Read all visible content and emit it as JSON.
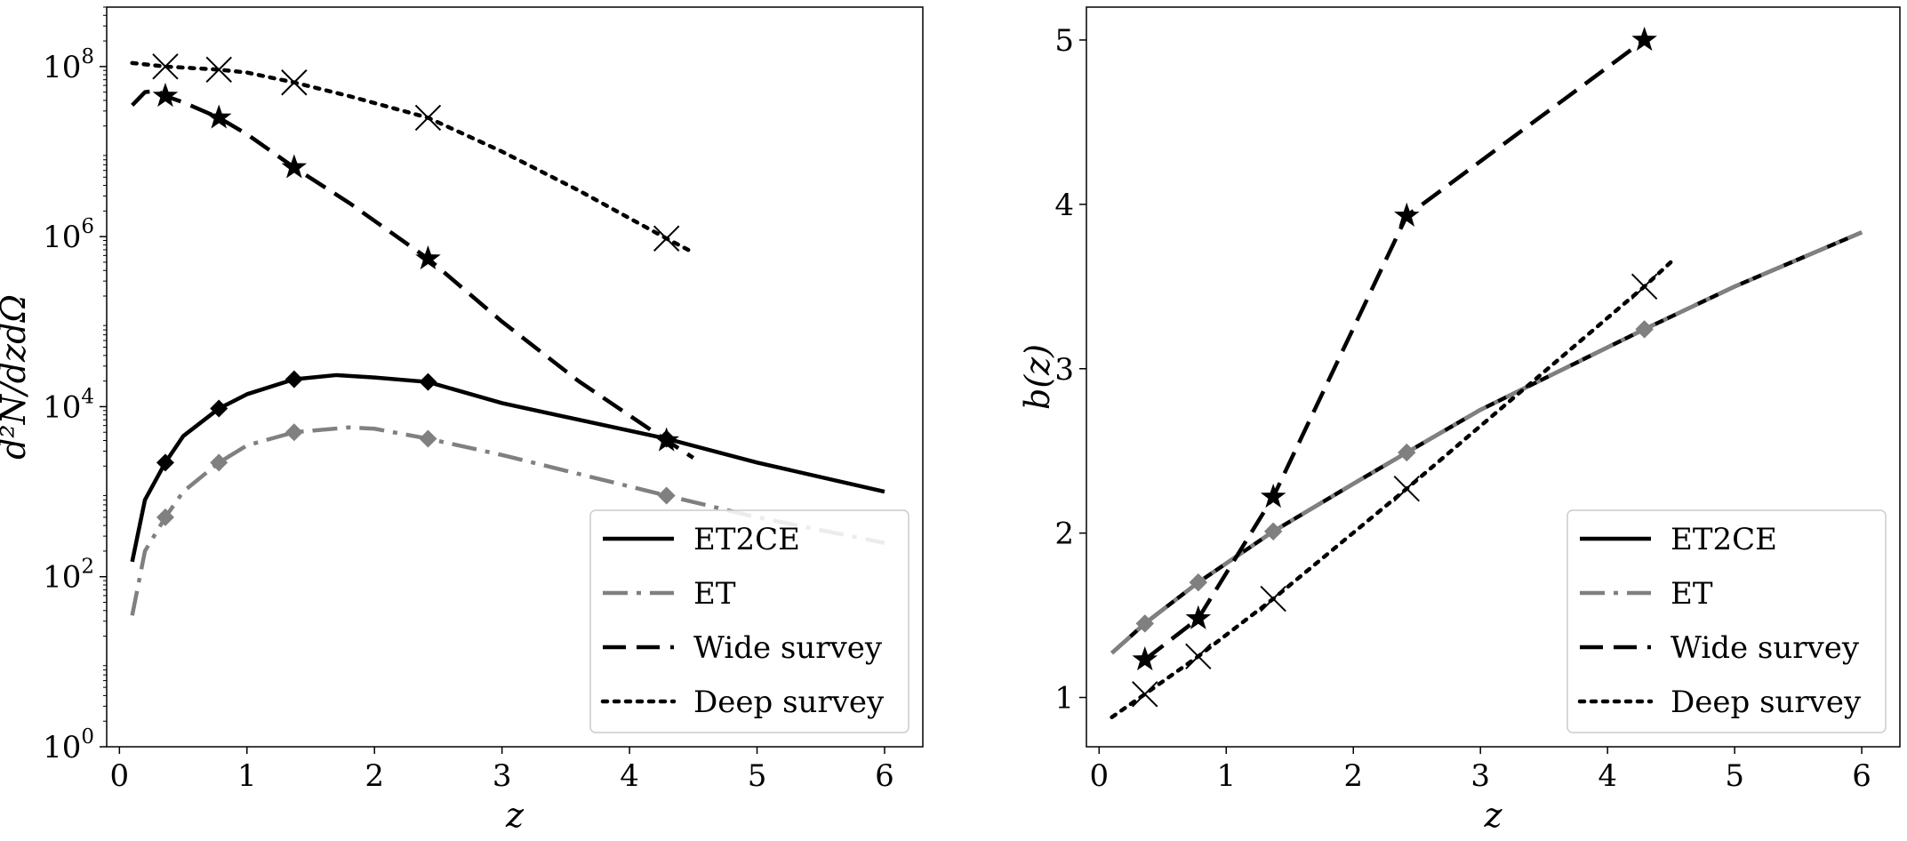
{
  "chart_data": [
    {
      "type": "line",
      "yscale": "log",
      "xlabel": "z",
      "ylabel": "d²N/dzdΩ",
      "xlim": [
        -0.1,
        6.3
      ],
      "ylim": [
        1,
        500000000
      ],
      "xticks": [
        0,
        1,
        2,
        3,
        4,
        5,
        6
      ],
      "xtick_labels": [
        "0",
        "1",
        "2",
        "3",
        "4",
        "5",
        "6"
      ],
      "yticks": [
        1,
        100,
        10000,
        1000000,
        100000000
      ],
      "ytick_labels": [
        {
          "base": "10",
          "exp": "0"
        },
        {
          "base": "10",
          "exp": "2"
        },
        {
          "base": "10",
          "exp": "4"
        },
        {
          "base": "10",
          "exp": "6"
        },
        {
          "base": "10",
          "exp": "8"
        }
      ],
      "grid": false,
      "legend_position": "bottom-right",
      "series": [
        {
          "name": "ET2CE",
          "color": "#000000",
          "line_style": "solid",
          "marker": "diamond",
          "x": [
            0.1,
            0.2,
            0.36,
            0.5,
            0.78,
            1.0,
            1.37,
            1.7,
            2.0,
            2.42,
            3.0,
            4.29,
            5.0,
            6.0
          ],
          "y": [
            150,
            800,
            2200,
            4500,
            9500,
            14000,
            21000,
            23500,
            22000,
            19500,
            11000,
            4200,
            2200,
            1000
          ],
          "marker_x": [
            0.36,
            0.78,
            1.37,
            2.42,
            4.29
          ],
          "marker_y": [
            2200,
            9500,
            21000,
            19500,
            4200
          ]
        },
        {
          "name": "ET",
          "color": "#808080",
          "line_style": "dashdot",
          "marker": "diamond",
          "x": [
            0.1,
            0.2,
            0.36,
            0.5,
            0.78,
            1.0,
            1.37,
            1.8,
            2.0,
            2.42,
            3.0,
            4.29,
            5.0,
            6.0
          ],
          "y": [
            35,
            200,
            500,
            1000,
            2200,
            3500,
            5000,
            5700,
            5500,
            4200,
            2700,
            900,
            500,
            250
          ],
          "marker_x": [
            0.36,
            0.78,
            1.37,
            2.42,
            4.29
          ],
          "marker_y": [
            500,
            2200,
            5000,
            4200,
            900
          ]
        },
        {
          "name": "Wide survey",
          "color": "#000000",
          "line_style": "dashed",
          "marker": "star",
          "x": [
            0.1,
            0.2,
            0.3,
            0.36,
            0.5,
            0.78,
            1.0,
            1.37,
            1.8,
            2.42,
            3.0,
            3.6,
            4.29,
            4.5
          ],
          "y": [
            35000000,
            50000000,
            52000000,
            45000000,
            38000000,
            25000000,
            16000000,
            6500000,
            2500000,
            550000,
            100000,
            20000,
            4000,
            2500
          ],
          "marker_x": [
            0.36,
            0.78,
            1.37,
            2.42,
            4.29
          ],
          "marker_y": [
            45000000,
            25000000,
            6500000,
            550000,
            4000
          ]
        },
        {
          "name": "Deep survey",
          "color": "#000000",
          "line_style": "dotted",
          "marker": "x",
          "x": [
            0.1,
            0.36,
            0.78,
            1.0,
            1.37,
            1.8,
            2.42,
            3.0,
            3.6,
            4.29,
            4.5
          ],
          "y": [
            110000000,
            100000000,
            92000000,
            85000000,
            65000000,
            45000000,
            25000000,
            10000000,
            3500000,
            950000,
            650000
          ],
          "marker_x": [
            0.36,
            0.78,
            1.37,
            2.42,
            4.29
          ],
          "marker_y": [
            100000000,
            92000000,
            65000000,
            25000000,
            950000
          ]
        }
      ]
    },
    {
      "type": "line",
      "yscale": "linear",
      "xlabel": "z",
      "ylabel": "b(z)",
      "xlim": [
        -0.1,
        6.3
      ],
      "ylim": [
        0.7,
        5.2
      ],
      "xticks": [
        0,
        1,
        2,
        3,
        4,
        5,
        6
      ],
      "xtick_labels": [
        "0",
        "1",
        "2",
        "3",
        "4",
        "5",
        "6"
      ],
      "yticks": [
        1,
        2,
        3,
        4,
        5
      ],
      "ytick_labels": [
        "1",
        "2",
        "3",
        "4",
        "5"
      ],
      "grid": false,
      "legend_position": "bottom-right",
      "series": [
        {
          "name": "ET2CE",
          "color": "#000000",
          "line_style": "solid",
          "marker": "diamond",
          "x": [
            0.1,
            0.36,
            0.78,
            1.37,
            2.0,
            2.42,
            3.0,
            4.29,
            5.0,
            6.0
          ],
          "y": [
            1.27,
            1.45,
            1.7,
            2.01,
            2.3,
            2.49,
            2.75,
            3.24,
            3.5,
            3.83
          ],
          "marker_x": [
            0.36,
            0.78,
            1.37,
            2.42,
            4.29
          ],
          "marker_y": [
            1.45,
            1.7,
            2.01,
            2.49,
            3.24
          ]
        },
        {
          "name": "ET",
          "color": "#808080",
          "line_style": "dashdot",
          "marker": "diamond",
          "x": [
            0.1,
            0.36,
            0.78,
            1.37,
            2.0,
            2.42,
            3.0,
            4.29,
            5.0,
            6.0
          ],
          "y": [
            1.27,
            1.45,
            1.7,
            2.01,
            2.3,
            2.49,
            2.75,
            3.24,
            3.5,
            3.83
          ],
          "marker_x": [
            0.36,
            0.78,
            1.37,
            2.42,
            4.29
          ],
          "marker_y": [
            1.45,
            1.7,
            2.01,
            2.49,
            3.24
          ]
        },
        {
          "name": "Wide survey",
          "color": "#000000",
          "line_style": "dashed",
          "marker": "star",
          "x": [
            0.36,
            0.78,
            1.37,
            2.42,
            4.29
          ],
          "y": [
            1.23,
            1.48,
            2.22,
            3.93,
            5.0
          ],
          "marker_x": [
            0.36,
            0.78,
            1.37,
            2.42,
            4.29
          ],
          "marker_y": [
            1.23,
            1.48,
            2.22,
            3.93,
            5.0
          ]
        },
        {
          "name": "Deep survey",
          "color": "#000000",
          "line_style": "dotted",
          "marker": "x",
          "x": [
            0.1,
            0.36,
            0.78,
            1.37,
            2.42,
            4.29,
            4.5
          ],
          "y": [
            0.88,
            1.02,
            1.25,
            1.6,
            2.27,
            3.5,
            3.65
          ],
          "marker_x": [
            0.36,
            0.78,
            1.37,
            2.42,
            4.29
          ],
          "marker_y": [
            1.02,
            1.25,
            1.6,
            2.27,
            3.5
          ]
        }
      ]
    }
  ]
}
